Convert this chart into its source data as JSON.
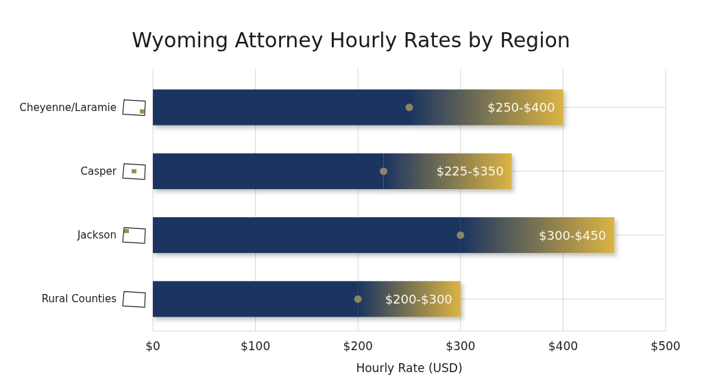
{
  "chart_data": {
    "type": "bar",
    "orientation": "horizontal",
    "stacked": true,
    "title": "Wyoming Attorney Hourly Rates by Region",
    "xlabel": "Hourly Rate (USD)",
    "categories": [
      "Cheyenne/Laramie",
      "Casper",
      "Jackson",
      "Rural Counties"
    ],
    "series": [
      {
        "color": "#1a3461",
        "values": [
          250,
          225,
          300,
          200
        ]
      },
      {
        "color": "#dcb443",
        "values": [
          150,
          125,
          150,
          100
        ],
        "value_labels": [
          "$250-$400",
          "$225-$350",
          "$300-$450",
          "$200-$300"
        ]
      },
      {
        "type": "scatter",
        "color": "#8a8466",
        "x": [
          "Cheyenne/Laramie",
          "Casper",
          "Jackson",
          "Rural Counties"
        ],
        "values": [
          250,
          225,
          300,
          200
        ]
      }
    ],
    "marker": "circle",
    "xlim": [
      0,
      500
    ],
    "xticks": [
      {
        "value": 0,
        "label": "$0"
      },
      {
        "value": 100,
        "label": "$100"
      },
      {
        "value": 200,
        "label": "$200"
      },
      {
        "value": 300,
        "label": "$300"
      },
      {
        "value": 400,
        "label": "$400"
      },
      {
        "value": 500,
        "label": "$500"
      }
    ],
    "grid": true
  }
}
